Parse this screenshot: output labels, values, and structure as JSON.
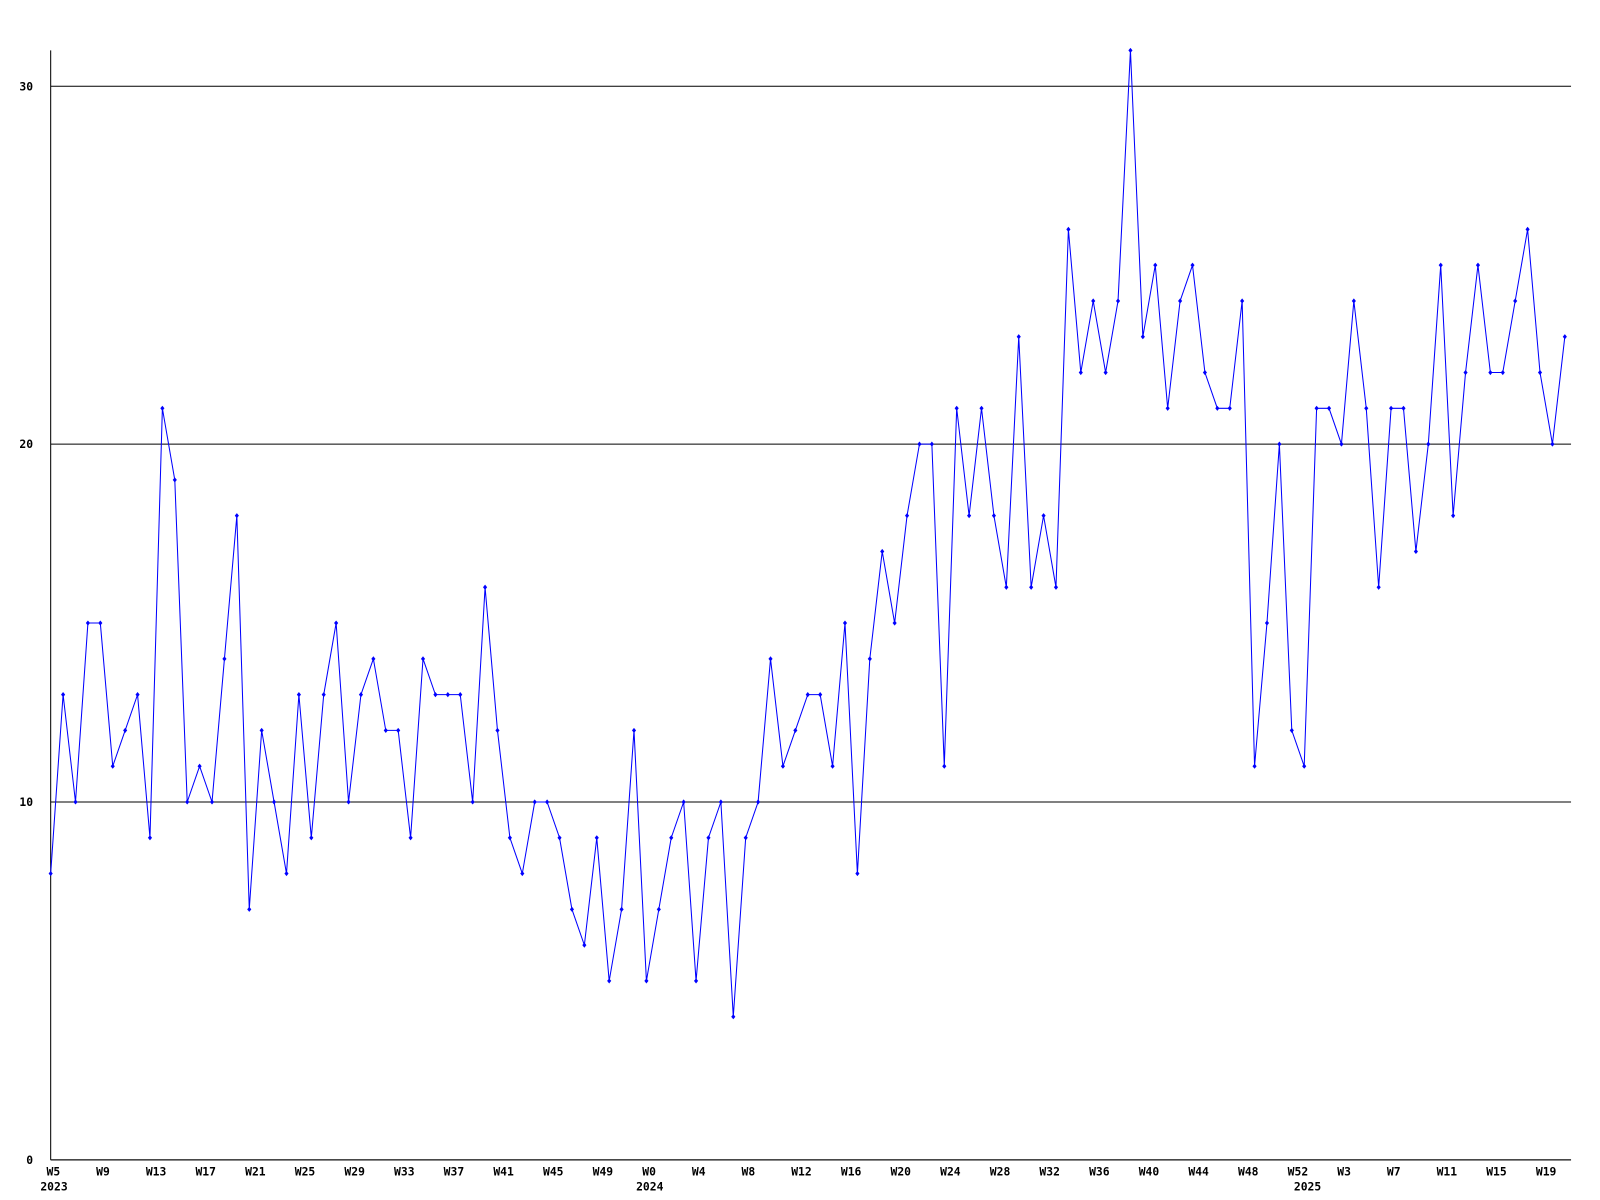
{
  "chart_data": {
    "type": "line",
    "categories": [
      "W5",
      null,
      null,
      null,
      "W9",
      null,
      null,
      null,
      "W13",
      null,
      null,
      null,
      "W17",
      null,
      null,
      null,
      "W21",
      null,
      null,
      null,
      "W25",
      null,
      null,
      null,
      "W29",
      null,
      null,
      null,
      "W33",
      null,
      null,
      null,
      "W37",
      null,
      null,
      null,
      "W41",
      null,
      null,
      null,
      "W45",
      null,
      null,
      null,
      "W49",
      null,
      null,
      null,
      "W0",
      null,
      null,
      null,
      "W4",
      null,
      null,
      null,
      "W8",
      null,
      null,
      null,
      "W12",
      null,
      null,
      null,
      "W16",
      null,
      null,
      null,
      "W20",
      null,
      null,
      null,
      "W24",
      null,
      null,
      null,
      "W28",
      null,
      null,
      null,
      "W32",
      null,
      null,
      null,
      "W36",
      null,
      null,
      null,
      "W40",
      null,
      null,
      null,
      "W44",
      null,
      null,
      null,
      "W48",
      null,
      null,
      null,
      "W52",
      null,
      null,
      null,
      "W3",
      null,
      null,
      null,
      "W7",
      null,
      null,
      null,
      "W11",
      null,
      null,
      null,
      "W15",
      null,
      null,
      null,
      "W19",
      null,
      null
    ],
    "year_labels": [
      "2023",
      null,
      null,
      null,
      null,
      null,
      null,
      null,
      null,
      null,
      null,
      null,
      null,
      null,
      null,
      null,
      null,
      null,
      null,
      null,
      null,
      null,
      null,
      null,
      null,
      null,
      null,
      null,
      null,
      null,
      null,
      null,
      null,
      null,
      null,
      null,
      null,
      null,
      null,
      null,
      null,
      null,
      null,
      null,
      null,
      null,
      null,
      null,
      "2024",
      null,
      null,
      null,
      null,
      null,
      null,
      null,
      null,
      null,
      null,
      null,
      null,
      null,
      null,
      null,
      null,
      null,
      null,
      null,
      null,
      null,
      null,
      null,
      null,
      null,
      null,
      null,
      null,
      null,
      null,
      null,
      null,
      null,
      null,
      null,
      null,
      null,
      null,
      null,
      null,
      null,
      null,
      null,
      null,
      null,
      null,
      null,
      null,
      null,
      null,
      null,
      null,
      "2025",
      null,
      null,
      null,
      null,
      null,
      null,
      null,
      null,
      null,
      null,
      null,
      null,
      null,
      null,
      null,
      null,
      null,
      null,
      null,
      null
    ],
    "series": [
      {
        "color": "#0000ff",
        "values": [
          8,
          13,
          10,
          15,
          15,
          11,
          12,
          13,
          9,
          21,
          19,
          10,
          11,
          10,
          14,
          18,
          7,
          12,
          10,
          8,
          13,
          9,
          13,
          15,
          10,
          13,
          14,
          12,
          12,
          9,
          14,
          13,
          13,
          13,
          10,
          16,
          12,
          9,
          8,
          10,
          10,
          9,
          7,
          6,
          9,
          5,
          7,
          12,
          5,
          7,
          9,
          10,
          5,
          9,
          10,
          4,
          9,
          10,
          14,
          11,
          12,
          13,
          13,
          11,
          15,
          8,
          14,
          17,
          15,
          18,
          20,
          20,
          11,
          21,
          18,
          21,
          18,
          16,
          23,
          16,
          18,
          16,
          26,
          22,
          24,
          22,
          24,
          31,
          23,
          25,
          21,
          24,
          25,
          22,
          21,
          21,
          24,
          11,
          15,
          20,
          12,
          11,
          21,
          21,
          20,
          24,
          21,
          16,
          21,
          21,
          17,
          20,
          25,
          18,
          22,
          25,
          22,
          22,
          24,
          26,
          22,
          20,
          23
        ]
      }
    ],
    "ylim": [
      0,
      31
    ],
    "yticks": [
      0,
      10,
      20,
      30
    ],
    "grid": true
  }
}
